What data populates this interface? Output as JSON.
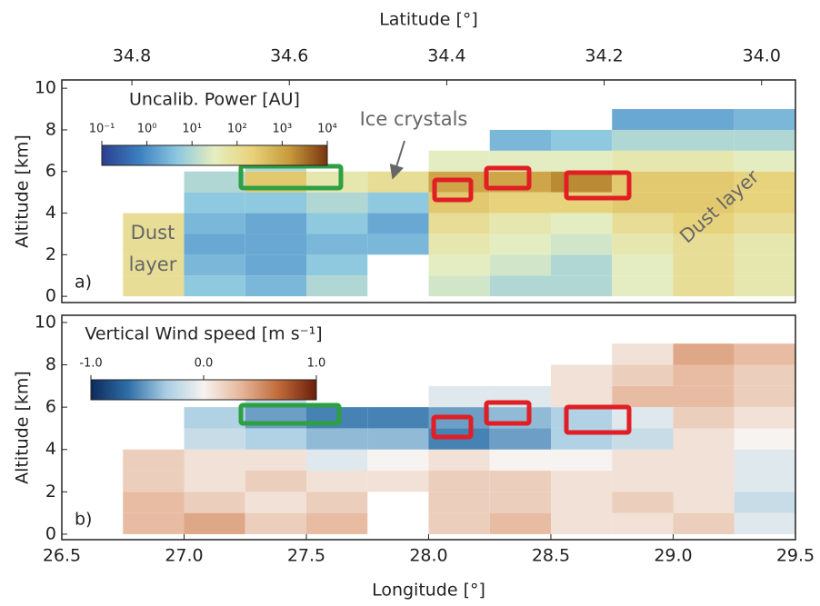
{
  "chart_data": [
    {
      "type": "heatmap",
      "panel_label": "a)",
      "colorbar_title": "Uncalib. Power [AU]",
      "log": true,
      "clim": [
        0.1,
        10000
      ],
      "cticks": [
        {
          "value": 0.1,
          "label": "10⁻¹"
        },
        {
          "value": 1,
          "label": "10⁰"
        },
        {
          "value": 10,
          "label": "10¹"
        },
        {
          "value": 100,
          "label": "10²"
        },
        {
          "value": 1000,
          "label": "10³"
        },
        {
          "value": 10000,
          "label": "10⁴"
        }
      ],
      "colormap": [
        "#2b3f8f",
        "#3c7fc0",
        "#8cc8e0",
        "#e6eec0",
        "#e8d27a",
        "#c79a3b",
        "#7a3410"
      ],
      "ylabel": "Altitude [km]",
      "ylim": [
        -0.3,
        10.4
      ],
      "yticks": [
        0,
        2,
        4,
        6,
        8,
        10
      ],
      "xlim": [
        26.5,
        29.5
      ],
      "x2label": "Latitude [°]",
      "x2lim": [
        34.889,
        33.957
      ],
      "x2ticks": [
        34.8,
        34.6,
        34.4,
        34.2,
        {
          "value": 34.0,
          "label": "34.0"
        }
      ],
      "xbins": [
        26.75,
        27.0,
        27.25,
        27.5,
        27.75,
        28.0,
        28.25,
        28.5,
        28.75,
        29.0,
        29.25,
        29.5
      ],
      "ybins": [
        0,
        1,
        2,
        3,
        4,
        5,
        6,
        7,
        8,
        9
      ],
      "z": [
        [
          100,
          5,
          3,
          10,
          null,
          20,
          10,
          10,
          30,
          100,
          50
        ],
        [
          100,
          3,
          2,
          5,
          null,
          30,
          20,
          10,
          30,
          100,
          50
        ],
        [
          100,
          2,
          2,
          3,
          3,
          50,
          30,
          20,
          50,
          100,
          50
        ],
        [
          100,
          3,
          2,
          5,
          2,
          100,
          50,
          30,
          100,
          200,
          100
        ],
        [
          null,
          5,
          5,
          10,
          5,
          300,
          200,
          200,
          300,
          300,
          200
        ],
        [
          null,
          10,
          300,
          50,
          100,
          1000,
          1000,
          2000,
          300,
          300,
          200
        ],
        [
          null,
          null,
          10,
          null,
          null,
          30,
          30,
          30,
          50,
          50,
          30
        ],
        [
          null,
          null,
          null,
          null,
          null,
          null,
          3,
          5,
          10,
          10,
          10
        ],
        [
          null,
          null,
          null,
          null,
          null,
          null,
          null,
          null,
          2,
          2,
          3
        ]
      ],
      "annotations": [
        "Ice crystals",
        "Dust",
        "layer",
        "Dust layer"
      ]
    },
    {
      "type": "heatmap",
      "panel_label": "b)",
      "colorbar_title": "Vertical Wind speed [m s⁻¹]",
      "log": false,
      "clim": [
        -1,
        1
      ],
      "cticks": [
        {
          "value": -1,
          "label": "-1.0"
        },
        {
          "value": 0,
          "label": "0.0"
        },
        {
          "value": 1,
          "label": "1.0"
        }
      ],
      "colormap": [
        "#0d2a5c",
        "#2f6fa8",
        "#a9cde3",
        "#f6f3f0",
        "#e6b69a",
        "#c06a3a",
        "#6b1e0a"
      ],
      "ylabel": "Altitude [km]",
      "ylim": [
        -0.26,
        10.34
      ],
      "yticks": [
        0,
        2,
        4,
        6,
        8,
        10
      ],
      "xlabel": "Longitude [°]",
      "xlim": [
        26.5,
        29.5
      ],
      "xticks": [
        26.5,
        {
          "value": 27,
          "label": "27.0"
        },
        27.5,
        {
          "value": 28,
          "label": "28.0"
        },
        28.5,
        {
          "value": 29,
          "label": "29.0"
        },
        29.5
      ],
      "xbins": [
        26.75,
        27.0,
        27.25,
        27.5,
        27.75,
        28.0,
        28.25,
        28.5,
        28.75,
        29.0,
        29.25,
        29.5
      ],
      "ybins": [
        0,
        1,
        2,
        3,
        4,
        5,
        6,
        7,
        8,
        9
      ],
      "z": [
        [
          0.3,
          0.4,
          0.2,
          0.3,
          null,
          0.2,
          0.3,
          0.1,
          0.1,
          0.2,
          -0.1
        ],
        [
          0.3,
          0.2,
          0.1,
          0.2,
          null,
          0.2,
          0.2,
          0.1,
          0.2,
          0.1,
          -0.2
        ],
        [
          0.2,
          0.1,
          0.2,
          0.1,
          0.1,
          0.2,
          0.2,
          0.1,
          0.1,
          0.1,
          -0.1
        ],
        [
          0.2,
          0.1,
          0.1,
          -0.1,
          0.0,
          0.1,
          0.0,
          0.0,
          0.1,
          0.1,
          -0.1
        ],
        [
          null,
          -0.2,
          -0.3,
          -0.4,
          -0.4,
          -0.6,
          -0.5,
          -0.3,
          -0.2,
          0.1,
          0.0
        ],
        [
          null,
          -0.3,
          -0.5,
          -0.6,
          -0.6,
          -0.5,
          -0.4,
          -0.3,
          -0.1,
          0.2,
          0.1
        ],
        [
          null,
          null,
          -0.2,
          null,
          null,
          -0.1,
          -0.1,
          0.1,
          0.3,
          0.3,
          0.2
        ],
        [
          null,
          null,
          null,
          null,
          null,
          null,
          null,
          0.1,
          0.2,
          0.3,
          0.2
        ],
        [
          null,
          null,
          null,
          null,
          null,
          null,
          null,
          null,
          0.1,
          0.4,
          0.3
        ]
      ]
    }
  ]
}
